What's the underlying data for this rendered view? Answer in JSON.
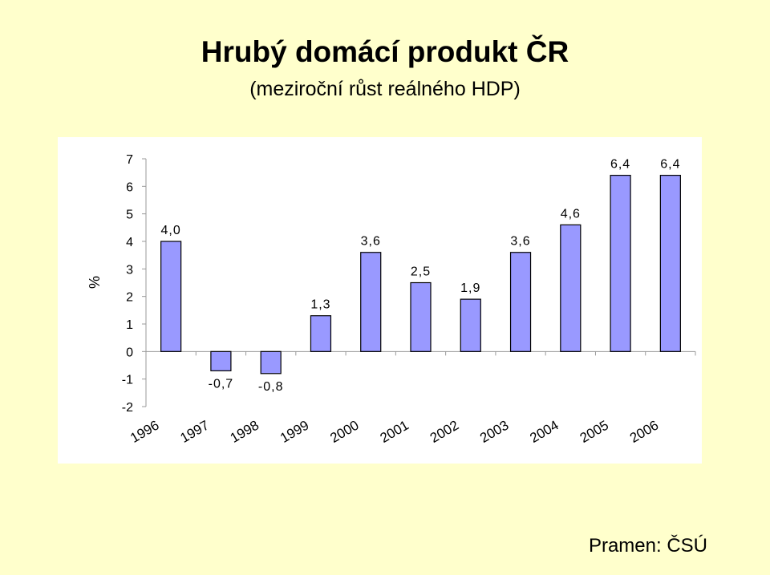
{
  "title": "Hrubý domácí produkt ČR",
  "subtitle": "(meziroční růst reálného HDP)",
  "source": "Pramen: ČSÚ",
  "chart_data": {
    "type": "bar",
    "categories": [
      "1996",
      "1997",
      "1998",
      "1999",
      "2000",
      "2001",
      "2002",
      "2003",
      "2004",
      "2005",
      "2006"
    ],
    "values": [
      4.0,
      -0.7,
      -0.8,
      1.3,
      3.6,
      2.5,
      1.9,
      3.6,
      4.6,
      6.4,
      6.4
    ],
    "data_labels": [
      "4,0",
      "-0,7",
      "-0,8",
      "1,3",
      "3,6",
      "2,5",
      "1,9",
      "3,6",
      "4,6",
      "6,4",
      "6,4"
    ],
    "ylabel": "%",
    "ylim": [
      -2,
      7
    ],
    "yticks": [
      -2,
      -1,
      0,
      1,
      2,
      3,
      4,
      5,
      6,
      7
    ],
    "ytick_labels": [
      "-2",
      "-1",
      "0",
      "1",
      "2",
      "3",
      "4",
      "5",
      "6",
      "7"
    ],
    "grid": false,
    "legend": "none",
    "bar_color": "#9999ff",
    "bar_edge_color": "#000000"
  }
}
